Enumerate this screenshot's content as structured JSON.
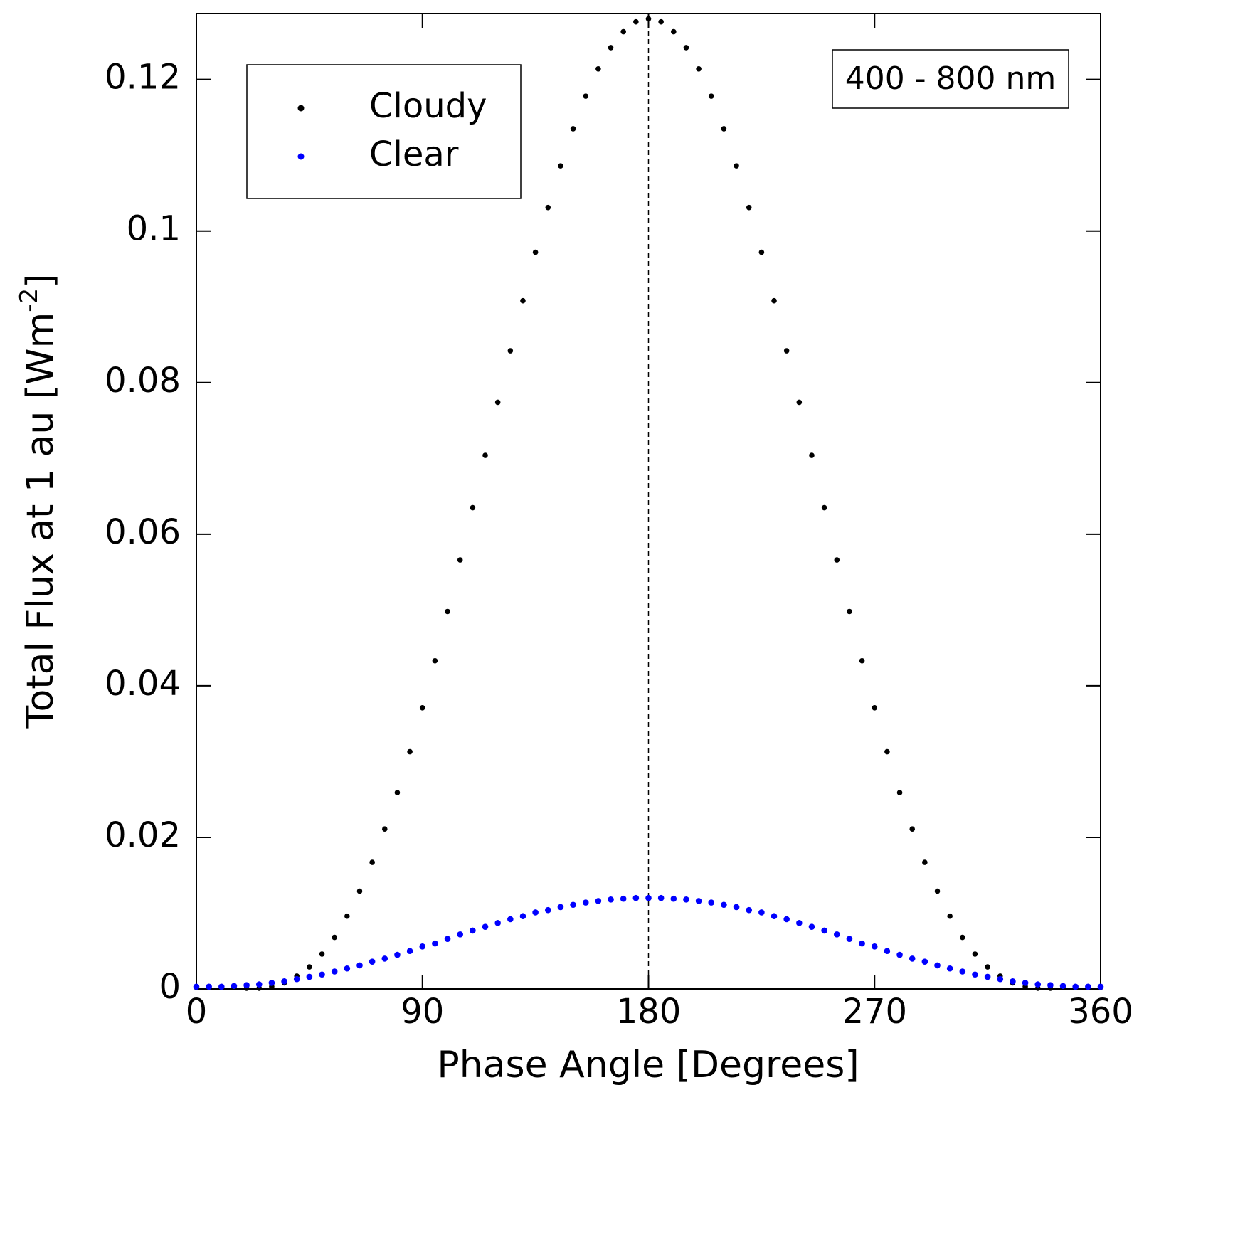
{
  "chart_data": {
    "type": "scatter",
    "xlabel": "Phase Angle [Degrees]",
    "ylabel": "Total Flux at 1 au [Wm",
    "ylabel_sup": "-2",
    "ylabel_end": "]",
    "annotation": "400 - 800 nm",
    "vline": 180,
    "legend_position": "upper left",
    "xlim": [
      0,
      360
    ],
    "xticks": [
      0,
      90,
      180,
      270,
      360
    ],
    "ylim": [
      0,
      0.1287
    ],
    "yticks": [
      0,
      0.02,
      0.04,
      0.06,
      0.08,
      0.1,
      0.12
    ],
    "x": [
      0,
      5,
      10,
      15,
      20,
      25,
      30,
      35,
      40,
      45,
      50,
      55,
      60,
      65,
      70,
      75,
      80,
      85,
      90,
      95,
      100,
      105,
      110,
      115,
      120,
      125,
      130,
      135,
      140,
      145,
      150,
      155,
      160,
      165,
      170,
      175,
      180,
      185,
      190,
      195,
      200,
      205,
      210,
      215,
      220,
      225,
      230,
      235,
      240,
      245,
      250,
      255,
      260,
      265,
      270,
      275,
      280,
      285,
      290,
      295,
      300,
      305,
      310,
      315,
      320,
      325,
      330,
      335,
      340,
      345,
      350,
      355,
      360
    ],
    "series": [
      {
        "name": "Cloudy",
        "color": "#000000",
        "values": [
          0.0002,
          0.0002,
          0.0002,
          0.0002,
          0.0001,
          0.0001,
          0.0003,
          0.0008,
          0.0017,
          0.0029,
          0.0046,
          0.0068,
          0.0096,
          0.0129,
          0.0167,
          0.0211,
          0.0259,
          0.0313,
          0.0371,
          0.0433,
          0.0498,
          0.0566,
          0.0635,
          0.0704,
          0.0774,
          0.0842,
          0.0908,
          0.0972,
          0.1031,
          0.1086,
          0.1135,
          0.1178,
          0.1214,
          0.1242,
          0.1263,
          0.1276,
          0.128,
          0.1276,
          0.1263,
          0.1242,
          0.1214,
          0.1178,
          0.1135,
          0.1086,
          0.1031,
          0.0972,
          0.0908,
          0.0842,
          0.0774,
          0.0704,
          0.0635,
          0.0566,
          0.0498,
          0.0433,
          0.0371,
          0.0313,
          0.0259,
          0.0211,
          0.0167,
          0.0129,
          0.0096,
          0.0068,
          0.0046,
          0.0029,
          0.0017,
          0.0008,
          0.0003,
          0.0001,
          0.0001,
          0.0002,
          0.0002,
          0.0002,
          0.0002
        ]
      },
      {
        "name": "Clear",
        "color": "#0000ff",
        "values": [
          0.0003,
          0.0003,
          0.0003,
          0.0004,
          0.0005,
          0.0006,
          0.0008,
          0.001,
          0.0013,
          0.0016,
          0.0019,
          0.0023,
          0.0027,
          0.0031,
          0.0036,
          0.004,
          0.0045,
          0.005,
          0.0056,
          0.006,
          0.0066,
          0.0072,
          0.0077,
          0.0082,
          0.0087,
          0.0092,
          0.0096,
          0.0101,
          0.0104,
          0.0108,
          0.0111,
          0.0114,
          0.0116,
          0.0118,
          0.0119,
          0.012,
          0.012,
          0.012,
          0.0119,
          0.0118,
          0.0116,
          0.0114,
          0.0111,
          0.0108,
          0.0104,
          0.0101,
          0.0096,
          0.0092,
          0.0087,
          0.0082,
          0.0077,
          0.0072,
          0.0066,
          0.006,
          0.0056,
          0.005,
          0.0045,
          0.004,
          0.0036,
          0.0031,
          0.0027,
          0.0023,
          0.0019,
          0.0016,
          0.0013,
          0.001,
          0.0008,
          0.0006,
          0.0005,
          0.0004,
          0.0003,
          0.0003,
          0.0003
        ]
      }
    ]
  }
}
